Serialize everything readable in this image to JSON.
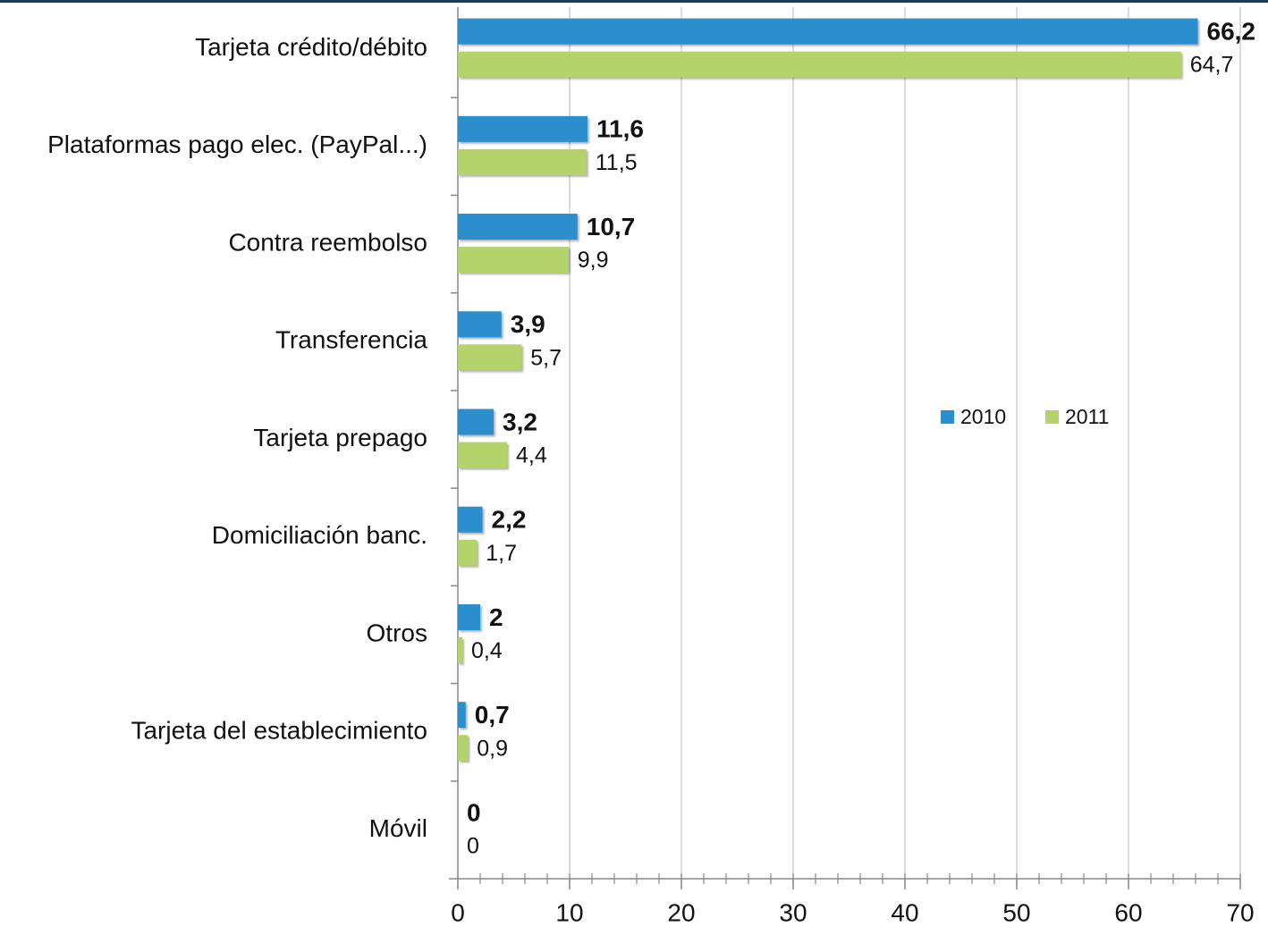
{
  "chart_data": {
    "type": "bar",
    "orientation": "horizontal",
    "categories": [
      "Tarjeta crédito/débito",
      "Plataformas pago elec. (PayPal...)",
      "Contra reembolso",
      "Transferencia",
      "Tarjeta prepago",
      "Domiciliación banc.",
      "Otros",
      "Tarjeta del establecimiento",
      "Móvil"
    ],
    "series": [
      {
        "name": "2010",
        "color": "#2a8fcc",
        "values": [
          66.2,
          11.6,
          10.7,
          3.9,
          3.2,
          2.2,
          2,
          0.7,
          0
        ],
        "value_labels": [
          "66,2",
          "11,6",
          "10,7",
          "3,9",
          "3,2",
          "2,2",
          "2",
          "0,7",
          "0"
        ]
      },
      {
        "name": "2011",
        "color": "#b5d36b",
        "values": [
          64.7,
          11.5,
          9.9,
          5.7,
          4.4,
          1.7,
          0.4,
          0.9,
          0
        ],
        "value_labels": [
          "64,7",
          "11,5",
          "9,9",
          "5,7",
          "4,4",
          "1,7",
          "0,4",
          "0,9",
          "0"
        ]
      }
    ],
    "xlim": [
      0,
      70
    ],
    "xticks": [
      0,
      10,
      20,
      30,
      40,
      50,
      60,
      70
    ],
    "grid": true,
    "legend": "right"
  }
}
